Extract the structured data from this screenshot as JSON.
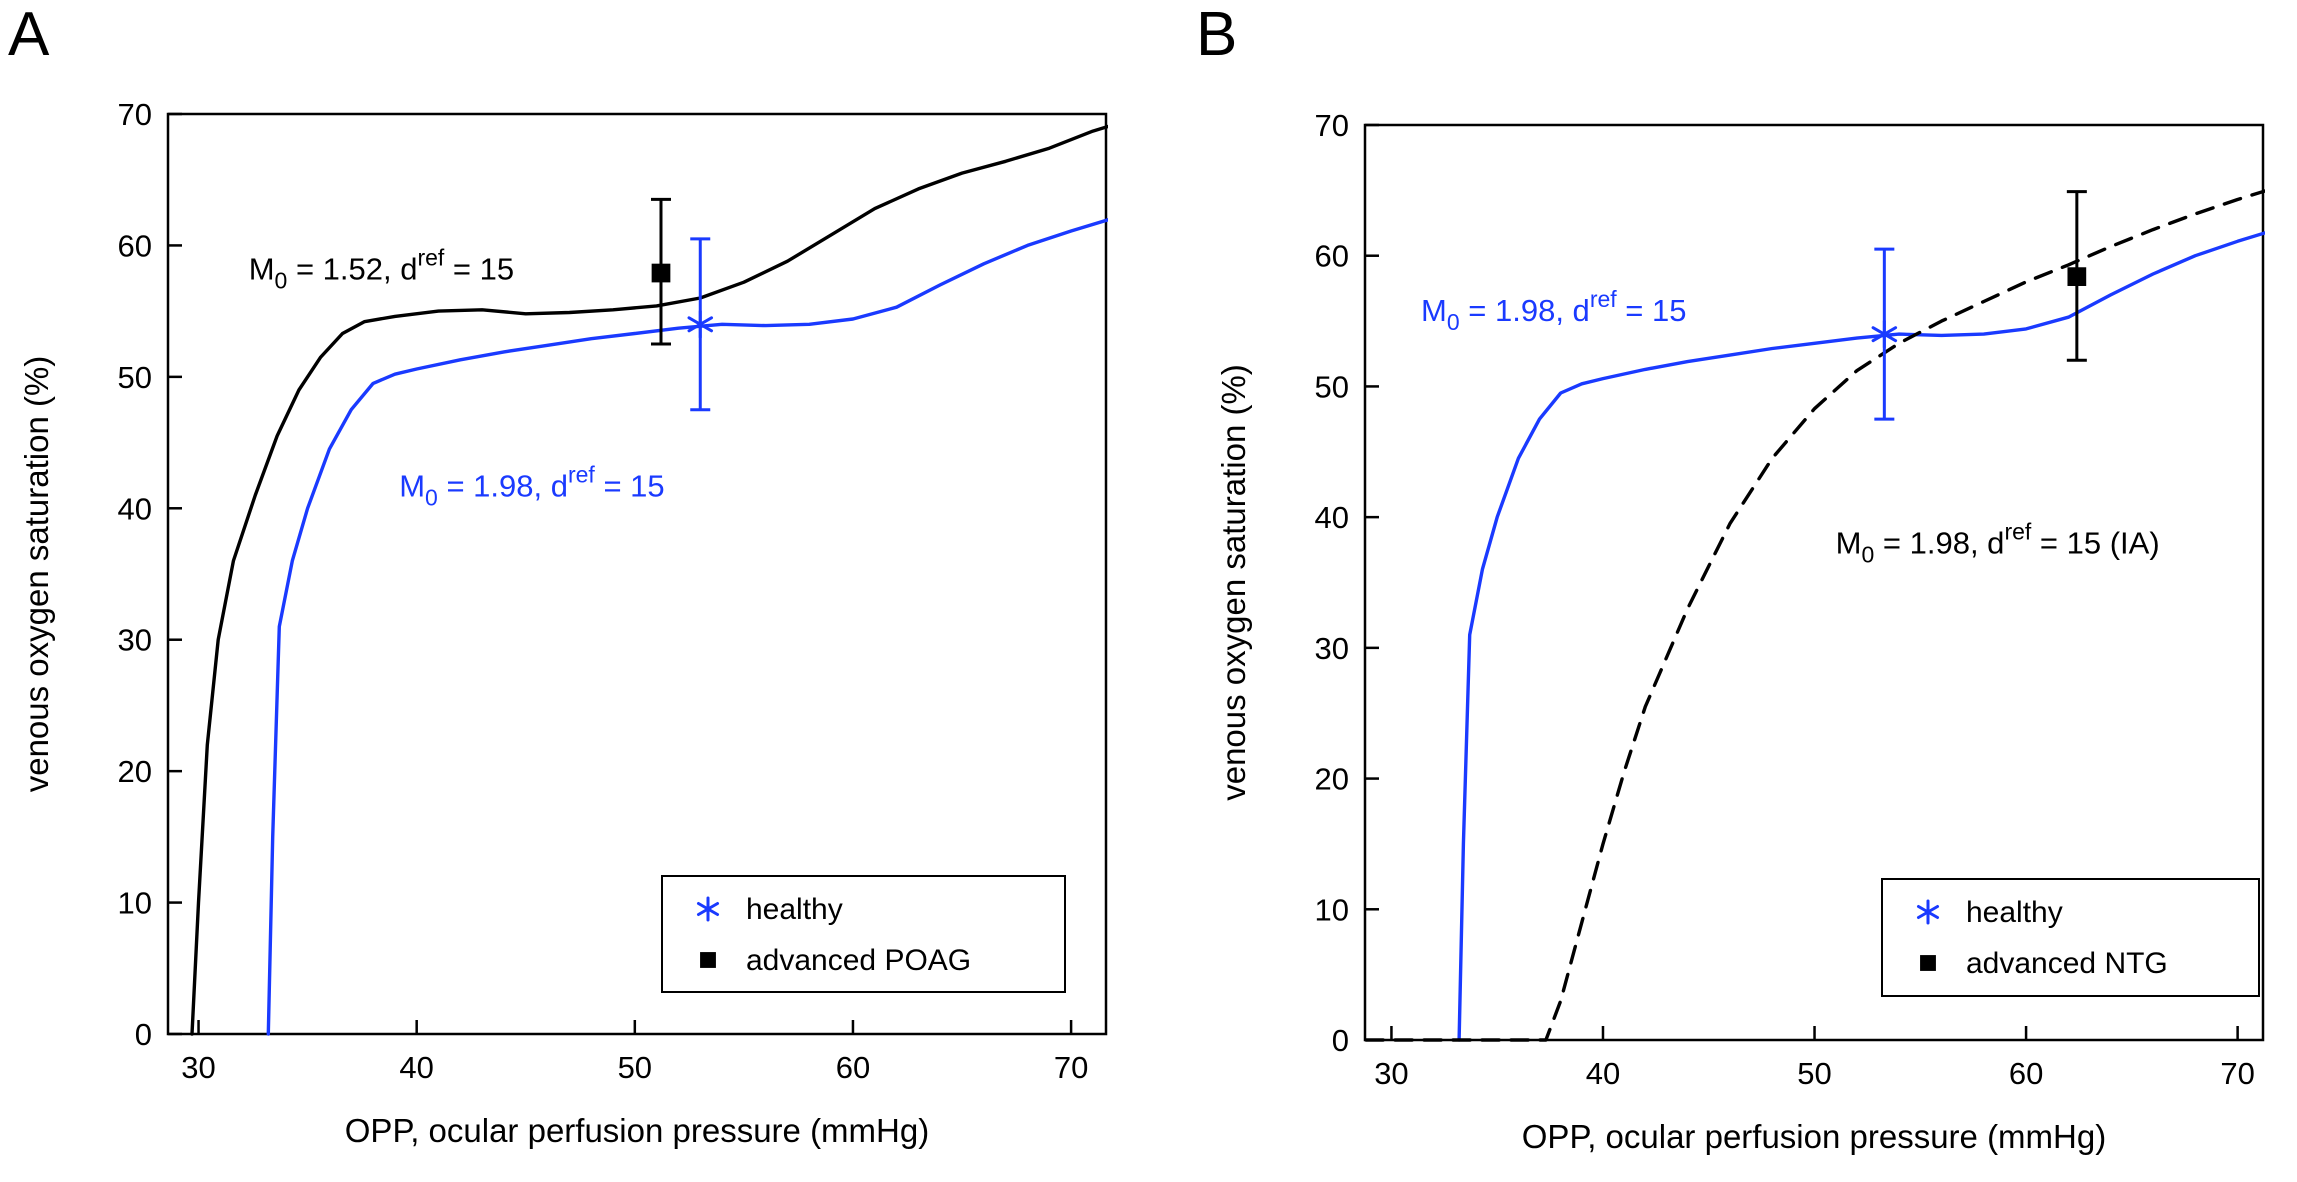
{
  "figure": {
    "background": "#ffffff",
    "panels": [
      {
        "letter": "A"
      },
      {
        "letter": "B"
      }
    ]
  },
  "colors": {
    "healthy_blue": "#1a3aff",
    "black": "#000000"
  },
  "chart_data": [
    {
      "panel": "A",
      "type": "line",
      "title": "",
      "xlabel": "OPP, ocular perfusion pressure (mmHg)",
      "ylabel": "venous oxygen saturation (%)",
      "xlim": [
        28.6,
        71.6
      ],
      "ylim": [
        0,
        70
      ],
      "xticks": [
        30,
        40,
        50,
        60,
        70
      ],
      "yticks": [
        0,
        10,
        20,
        30,
        40,
        50,
        60,
        70
      ],
      "grid": false,
      "legend_position": "bottom-right",
      "series": [
        {
          "name": "model M0=1.52 dref=15",
          "color": "#000000",
          "dash": "solid",
          "x": [
            29.7,
            30.0,
            30.4,
            30.9,
            31.6,
            32.6,
            33.6,
            34.6,
            35.6,
            36.6,
            37.6,
            39,
            41,
            43,
            45,
            47,
            49,
            51,
            53,
            55,
            57,
            59,
            61,
            63,
            65,
            67,
            69,
            71,
            72
          ],
          "y": [
            0,
            10,
            22,
            30,
            36,
            41,
            45.5,
            49,
            51.5,
            53.3,
            54.2,
            54.6,
            55.0,
            55.1,
            54.8,
            54.9,
            55.1,
            55.4,
            56.0,
            57.2,
            58.8,
            60.8,
            62.8,
            64.3,
            65.5,
            66.4,
            67.4,
            68.7,
            69.2
          ]
        },
        {
          "name": "model M0=1.98 dref=15",
          "color": "#1a3aff",
          "dash": "solid",
          "x": [
            33.2,
            33.4,
            33.7,
            34.3,
            35,
            36,
            37,
            38,
            39,
            40,
            42,
            44,
            46,
            48,
            50,
            52,
            54,
            56,
            58,
            60,
            62,
            64,
            66,
            68,
            70,
            72
          ],
          "y": [
            0,
            15,
            31,
            36,
            40,
            44.5,
            47.5,
            49.5,
            50.2,
            50.6,
            51.3,
            51.9,
            52.4,
            52.9,
            53.3,
            53.7,
            54.0,
            53.9,
            54.0,
            54.4,
            55.3,
            57.0,
            58.6,
            60.0,
            61.1,
            62.1
          ]
        }
      ],
      "points": [
        {
          "label": "healthy",
          "marker": "asterisk",
          "color": "#1a3aff",
          "x": 53,
          "y": 54,
          "err_low": 6.5,
          "err_high": 6.5
        },
        {
          "label": "advanced POAG",
          "marker": "square",
          "color": "#000000",
          "x": 51.2,
          "y": 57.9,
          "err_low": 5.4,
          "err_high": 5.6
        }
      ],
      "annotations": [
        {
          "color": "#000000",
          "x": 32.3,
          "y": 57.4,
          "pre": "M",
          "sub": "0",
          "mid": " = 1.52, d",
          "sup": "ref",
          "post": " = 15"
        },
        {
          "color": "#1a3aff",
          "x": 39.2,
          "y": 40.9,
          "pre": "M",
          "sub": "0",
          "mid": " = 1.98, d",
          "sup": "ref",
          "post": " = 15"
        }
      ]
    },
    {
      "panel": "B",
      "type": "line",
      "title": "",
      "xlabel": "OPP, ocular perfusion pressure (mmHg)",
      "ylabel": "venous oxygen saturation (%)",
      "xlim": [
        28.75,
        71.2
      ],
      "ylim": [
        0,
        70
      ],
      "xticks": [
        30,
        40,
        50,
        60,
        70
      ],
      "yticks": [
        0,
        10,
        20,
        30,
        40,
        50,
        60,
        70
      ],
      "grid": false,
      "legend_position": "bottom-right",
      "series": [
        {
          "name": "model M0=1.98 dref=15",
          "color": "#1a3aff",
          "dash": "solid",
          "x": [
            33.2,
            33.4,
            33.7,
            34.3,
            35,
            36,
            37,
            38,
            39,
            40,
            42,
            44,
            46,
            48,
            50,
            52,
            54,
            56,
            58,
            60,
            62,
            64,
            66,
            68,
            70,
            72
          ],
          "y": [
            0,
            15,
            31,
            36,
            40,
            44.5,
            47.5,
            49.5,
            50.2,
            50.6,
            51.3,
            51.9,
            52.4,
            52.9,
            53.3,
            53.7,
            54.0,
            53.9,
            54.0,
            54.4,
            55.3,
            57.0,
            58.6,
            60.0,
            61.1,
            62.1
          ]
        },
        {
          "name": "model M0=1.98 dref=15 (IA)",
          "color": "#000000",
          "dash": "dashed",
          "x": [
            28.8,
            33,
            36,
            37.3,
            38,
            39,
            40,
            41,
            42,
            44,
            46,
            48,
            50,
            52,
            54,
            56,
            58,
            60,
            62,
            64,
            66,
            68,
            70,
            72
          ],
          "y": [
            0,
            0,
            0,
            0,
            3,
            9,
            15,
            20.5,
            25.5,
            33,
            39.5,
            44.5,
            48.3,
            51.2,
            53.3,
            55.0,
            56.5,
            58.0,
            59.3,
            60.7,
            62.0,
            63.2,
            64.3,
            65.3
          ]
        }
      ],
      "points": [
        {
          "label": "healthy",
          "marker": "asterisk",
          "color": "#1a3aff",
          "x": 53.3,
          "y": 54,
          "err_low": 6.5,
          "err_high": 6.5
        },
        {
          "label": "advanced NTG",
          "marker": "square",
          "color": "#000000",
          "x": 62.4,
          "y": 58.4,
          "err_low": 6.4,
          "err_high": 6.5
        }
      ],
      "annotations": [
        {
          "color": "#1a3aff",
          "x": 31.4,
          "y": 55.0,
          "pre": "M",
          "sub": "0",
          "mid": " = 1.98, d",
          "sup": "ref",
          "post": " = 15"
        },
        {
          "color": "#000000",
          "x": 51.0,
          "y": 37.2,
          "pre": "M",
          "sub": "0",
          "mid": " = 1.98, d",
          "sup": "ref",
          "post": " = 15 (IA)"
        }
      ]
    }
  ]
}
